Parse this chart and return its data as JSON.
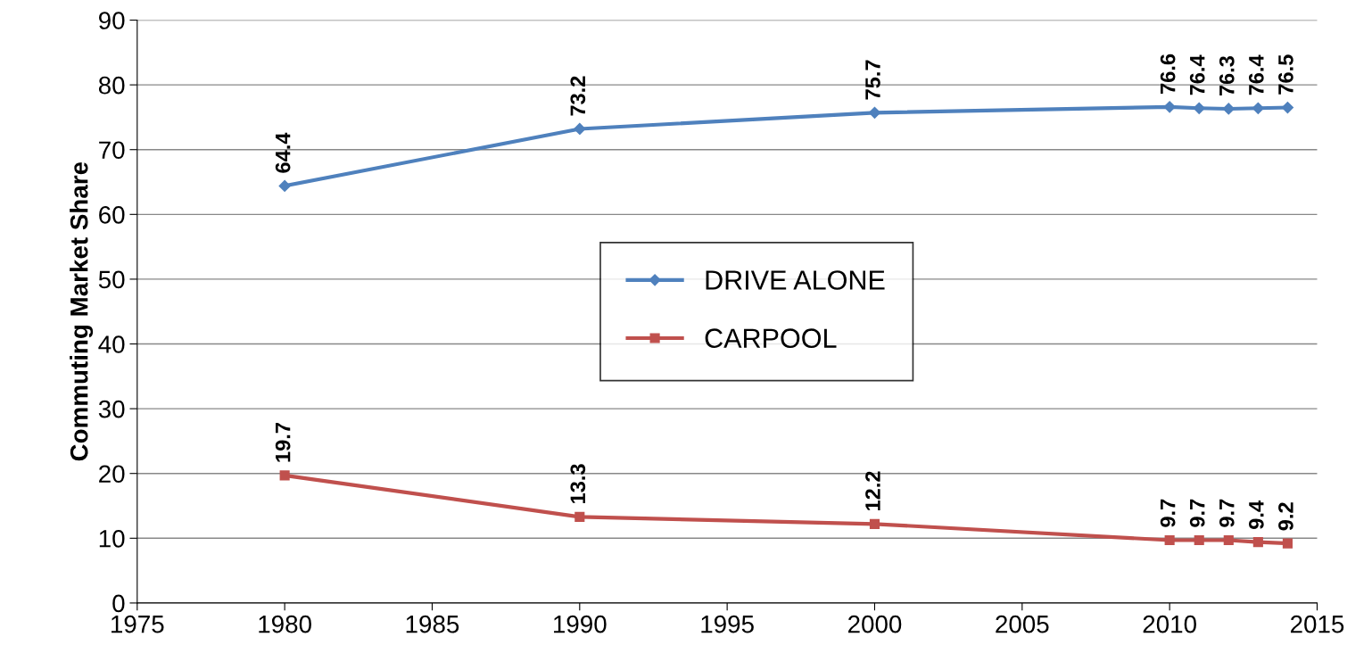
{
  "chart_data": {
    "type": "line",
    "ylabel": "Commuting Market Share",
    "x": [
      1980,
      1990,
      2000,
      2010,
      2011,
      2012,
      2013,
      2014
    ],
    "series": [
      {
        "name": "DRIVE ALONE",
        "color": "#4f81bd",
        "marker": "diamond",
        "values": [
          64.4,
          73.2,
          75.7,
          76.6,
          76.4,
          76.3,
          76.4,
          76.5
        ]
      },
      {
        "name": "CARPOOL",
        "color": "#c0504d",
        "marker": "square",
        "values": [
          19.7,
          13.3,
          12.2,
          9.7,
          9.7,
          9.7,
          9.4,
          9.2
        ]
      }
    ],
    "xlim": [
      1975,
      2015
    ],
    "xticks": [
      1975,
      1980,
      1985,
      1990,
      1995,
      2000,
      2005,
      2010,
      2015
    ],
    "ylim": [
      0,
      90
    ],
    "yticks": [
      0,
      10,
      20,
      30,
      40,
      50,
      60,
      70,
      80,
      90
    ],
    "grid": "y",
    "legend": "center",
    "data_labels": true,
    "line_style": "solid"
  }
}
